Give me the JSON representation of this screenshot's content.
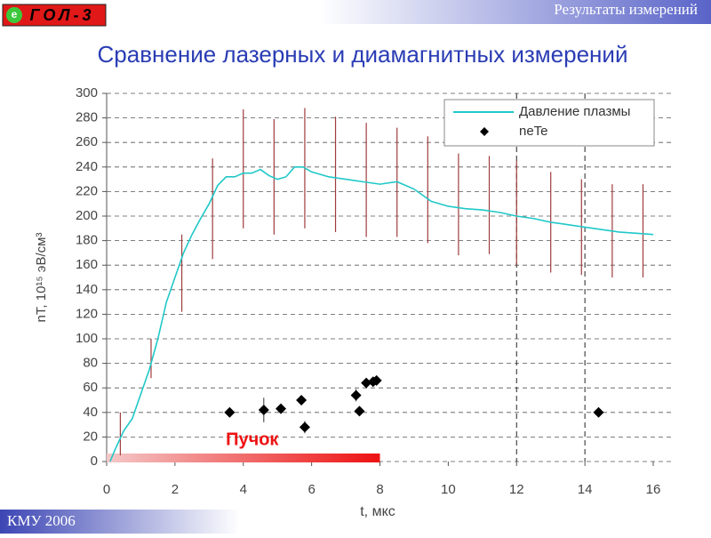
{
  "header": {
    "section": "Результаты измерений",
    "logo": "ГОЛ-3",
    "logo_mark": "e"
  },
  "footer": {
    "text": "КМУ 2006"
  },
  "chart_data": {
    "type": "line",
    "title": "Сравнение лазерных и диамагнитных измерений",
    "xlabel": "t, мкс",
    "ylabel": "nT, 10¹⁵ эВ/см³",
    "xlim": [
      0,
      16
    ],
    "xticks": [
      0,
      2,
      4,
      6,
      8,
      10,
      12,
      14,
      16
    ],
    "ylim": [
      0,
      300
    ],
    "yticks": [
      0,
      20,
      40,
      60,
      80,
      100,
      120,
      140,
      160,
      180,
      200,
      220,
      240,
      260,
      280,
      300
    ],
    "grid": true,
    "legend": "upper right",
    "vlines": [
      12,
      14
    ],
    "series": [
      {
        "name": "Давление плазмы",
        "color": "#20c8c8",
        "x": [
          0.1,
          0.25,
          0.5,
          0.75,
          1.0,
          1.25,
          1.5,
          1.75,
          2.0,
          2.25,
          2.5,
          2.75,
          3.0,
          3.25,
          3.5,
          3.75,
          4.0,
          4.25,
          4.5,
          4.75,
          5.0,
          5.25,
          5.5,
          5.75,
          6.0,
          6.5,
          7.0,
          7.5,
          8.0,
          8.5,
          9.0,
          9.5,
          10.0,
          10.5,
          11.0,
          11.5,
          12.0,
          12.5,
          13.0,
          13.5,
          14.0,
          14.5,
          15.0,
          15.5,
          16.0
        ],
        "values": [
          0,
          10,
          25,
          35,
          55,
          75,
          100,
          130,
          150,
          170,
          185,
          198,
          210,
          225,
          232,
          232,
          235,
          235,
          238,
          233,
          230,
          232,
          240,
          240,
          236,
          232,
          230,
          228,
          226,
          228,
          222,
          212,
          208,
          206,
          205,
          203,
          200,
          198,
          195,
          193,
          191,
          189,
          187,
          186,
          185
        ]
      },
      {
        "name": "neTe",
        "color": "#000000",
        "x": [
          3.6,
          4.6,
          5.1,
          5.7,
          5.8,
          7.3,
          7.4,
          7.6,
          7.8,
          7.9,
          14.4
        ],
        "values": [
          40,
          42,
          43,
          50,
          28,
          54,
          41,
          64,
          65,
          66,
          40
        ],
        "errors": [
          2,
          10,
          3,
          4,
          5,
          5,
          3,
          3,
          3,
          3,
          4
        ]
      }
    ],
    "error_bars": {
      "color": "#a03c3c",
      "x": [
        0.4,
        1.3,
        2.2,
        3.1,
        4.0,
        4.9,
        5.8,
        6.7,
        7.6,
        8.5,
        9.4,
        10.3,
        11.2,
        12.0,
        13.0,
        13.9,
        14.8,
        15.7
      ],
      "low": [
        5,
        68,
        122,
        165,
        190,
        185,
        190,
        187,
        183,
        183,
        178,
        168,
        169,
        160,
        154,
        152,
        150,
        150
      ],
      "high": [
        40,
        100,
        185,
        247,
        287,
        279,
        288,
        281,
        276,
        272,
        265,
        251,
        249,
        245,
        236,
        230,
        226,
        226
      ]
    },
    "beam": {
      "label": "Пучок",
      "x": [
        0,
        8
      ],
      "color": "#ee1111"
    }
  }
}
